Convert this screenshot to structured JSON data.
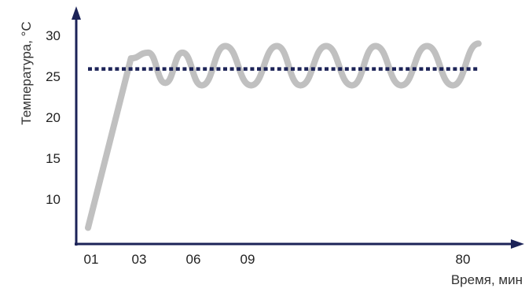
{
  "chart_data": {
    "type": "line",
    "title": "",
    "xlabel": "Время, мин",
    "ylabel": "Температура, °C",
    "x_tick_labels": [
      "01",
      "03",
      "06",
      "09",
      "80"
    ],
    "y_tick_labels": [
      "10",
      "15",
      "20",
      "25",
      "30"
    ],
    "ylim": [
      5,
      33
    ],
    "grid": false,
    "series": [
      {
        "style": "solid",
        "color": "#c0c0c0",
        "points": [
          [
            1,
            6.5
          ],
          [
            3,
            27.2
          ],
          [
            3.8,
            27.9
          ],
          [
            4.6,
            24.2
          ],
          [
            5.4,
            27.9
          ],
          [
            6.3,
            23.9
          ],
          [
            7.4,
            28.7
          ],
          [
            8.6,
            23.9
          ],
          [
            9.8,
            28.7
          ],
          [
            10.9,
            23.9
          ],
          [
            12.1,
            28.7
          ],
          [
            13.3,
            23.9
          ],
          [
            14.4,
            28.7
          ],
          [
            15.6,
            23.9
          ],
          [
            16.8,
            28.7
          ],
          [
            18,
            23.9
          ],
          [
            19.2,
            29
          ]
        ]
      },
      {
        "style": "dotted",
        "color": "#1c2358",
        "points": [
          [
            1,
            25.9
          ],
          [
            19.2,
            25.9
          ]
        ]
      }
    ]
  }
}
